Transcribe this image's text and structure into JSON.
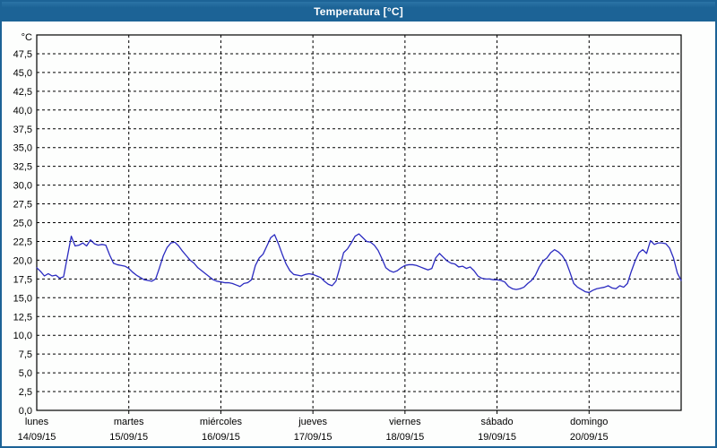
{
  "window": {
    "title": "Temperatura [°C]"
  },
  "colors": {
    "titlebar_bg": "#1c6396",
    "titlebar_text": "#ffffff",
    "window_border": "#1c6396",
    "plot_border": "#000000",
    "grid": "#000000",
    "line": "#2a2ac0",
    "label_text": "#000000",
    "plot_bg": "#fdfefd"
  },
  "chart_data": {
    "type": "line",
    "title": "Temperatura [°C]",
    "grid": "dashed",
    "legend": "none",
    "y_axis": {
      "unit_label": "°C",
      "min": 0,
      "max": 50,
      "tick_step": 2.5,
      "tick_labels": [
        "0,0",
        "2,5",
        "5,0",
        "7,5",
        "10,0",
        "12,5",
        "15,0",
        "17,5",
        "20,0",
        "22,5",
        "25,0",
        "27,5",
        "30,0",
        "32,5",
        "35,0",
        "37,5",
        "40,0",
        "42,5",
        "45,0",
        "47,5"
      ]
    },
    "x_axis": {
      "days": [
        {
          "name": "lunes",
          "date": "14/09/15"
        },
        {
          "name": "martes",
          "date": "15/09/15"
        },
        {
          "name": "miércoles",
          "date": "16/09/15"
        },
        {
          "name": "jueves",
          "date": "17/09/15"
        },
        {
          "name": "viernes",
          "date": "18/09/15"
        },
        {
          "name": "sábado",
          "date": "19/09/15"
        },
        {
          "name": "domingo",
          "date": "20/09/15"
        }
      ]
    },
    "series": [
      {
        "name": "Temperatura",
        "color": "#2a2ac0",
        "points_per_day": 24,
        "values": [
          19.0,
          18.5,
          17.9,
          18.2,
          17.9,
          18.0,
          17.6,
          17.8,
          20.5,
          23.2,
          21.9,
          22.0,
          22.3,
          21.9,
          22.7,
          22.2,
          22.0,
          22.1,
          22.0,
          20.7,
          19.6,
          19.4,
          19.3,
          19.2,
          18.9,
          18.4,
          18.0,
          17.7,
          17.4,
          17.3,
          17.2,
          17.5,
          19.0,
          20.6,
          21.7,
          22.3,
          22.4,
          21.9,
          21.2,
          20.6,
          20.0,
          19.6,
          19.0,
          18.6,
          18.2,
          17.8,
          17.4,
          17.2,
          17.1,
          17.0,
          17.0,
          16.9,
          16.7,
          16.5,
          16.9,
          17.0,
          17.4,
          19.3,
          20.3,
          20.8,
          21.9,
          23.0,
          23.4,
          22.2,
          20.8,
          19.5,
          18.6,
          18.1,
          18.0,
          17.9,
          18.1,
          18.2,
          18.1,
          17.9,
          17.7,
          17.2,
          16.8,
          16.6,
          17.2,
          19.0,
          21.0,
          21.5,
          22.3,
          23.2,
          23.5,
          23.0,
          22.5,
          22.4,
          22.0,
          21.3,
          20.2,
          19.0,
          18.6,
          18.4,
          18.6,
          19.0,
          19.3,
          19.4,
          19.4,
          19.3,
          19.1,
          18.9,
          18.7,
          18.9,
          20.3,
          20.9,
          20.4,
          19.9,
          19.6,
          19.5,
          19.1,
          19.2,
          18.9,
          19.1,
          18.6,
          17.9,
          17.6,
          17.5,
          17.5,
          17.4,
          17.4,
          17.3,
          17.1,
          16.5,
          16.2,
          16.1,
          16.2,
          16.4,
          16.9,
          17.3,
          18.0,
          19.1,
          19.9,
          20.3,
          21.0,
          21.4,
          21.1,
          20.6,
          19.8,
          18.4,
          16.9,
          16.4,
          16.1,
          15.8,
          15.7,
          16.0,
          16.2,
          16.3,
          16.4,
          16.6,
          16.3,
          16.2,
          16.6,
          16.4,
          16.9,
          18.5,
          19.9,
          21.0,
          21.4,
          20.9,
          22.6,
          22.1,
          22.3,
          22.3,
          22.2,
          21.6,
          20.3,
          18.3,
          17.3
        ]
      }
    ]
  }
}
